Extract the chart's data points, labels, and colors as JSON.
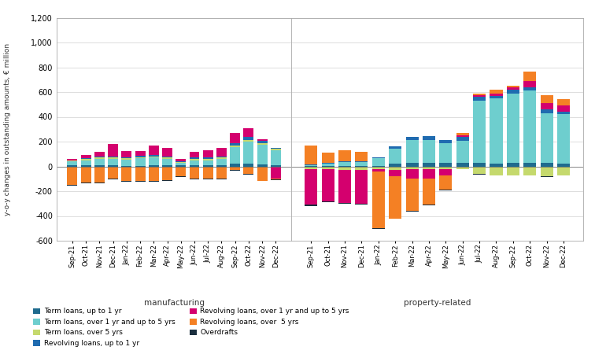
{
  "months": [
    "Sep-21",
    "Oct-21",
    "Nov-21",
    "Dec-21",
    "Jan-22",
    "Feb-22",
    "Mar-22",
    "Apr-22",
    "May-22",
    "Jun-22",
    "Jul-22",
    "Aug-22",
    "Sep-22",
    "Oct-22",
    "Nov-22",
    "Dec-22"
  ],
  "colors": {
    "term_up1": "#1f6b8e",
    "term_1to5": "#6ecece",
    "term_over5": "#c5d96d",
    "rev_up1": "#1f6bb0",
    "rev_1to5": "#d4006e",
    "rev_over5": "#f48024",
    "overdrafts": "#1a2e3e"
  },
  "manufacturing": {
    "term_up1": [
      10,
      10,
      10,
      10,
      5,
      5,
      10,
      10,
      10,
      10,
      10,
      10,
      25,
      25,
      15,
      10
    ],
    "term_1to5": [
      30,
      40,
      50,
      50,
      50,
      60,
      60,
      50,
      20,
      40,
      40,
      50,
      130,
      175,
      160,
      120
    ],
    "term_over5": [
      5,
      10,
      10,
      10,
      10,
      10,
      10,
      10,
      5,
      10,
      10,
      10,
      15,
      15,
      15,
      10
    ],
    "rev_up1": [
      5,
      5,
      10,
      10,
      10,
      10,
      10,
      10,
      5,
      10,
      10,
      10,
      20,
      25,
      15,
      10
    ],
    "rev_1to5": [
      10,
      30,
      40,
      100,
      50,
      40,
      80,
      70,
      20,
      50,
      60,
      70,
      80,
      70,
      15,
      -100
    ],
    "rev_over5": [
      -150,
      -130,
      -130,
      -100,
      -120,
      -120,
      -120,
      -110,
      -80,
      -100,
      -100,
      -100,
      -30,
      -60,
      -115,
      -5
    ],
    "overdrafts": [
      -5,
      -5,
      -5,
      -5,
      -5,
      -5,
      -5,
      -5,
      -5,
      -5,
      -5,
      -5,
      -5,
      -5,
      -5,
      -5
    ]
  },
  "property": {
    "term_up1": [
      5,
      5,
      5,
      5,
      5,
      20,
      30,
      30,
      30,
      30,
      30,
      20,
      30,
      30,
      30,
      20
    ],
    "term_1to5": [
      5,
      20,
      30,
      30,
      60,
      120,
      180,
      185,
      155,
      175,
      500,
      530,
      560,
      580,
      400,
      400
    ],
    "term_over5": [
      -20,
      -20,
      -30,
      -30,
      -20,
      -30,
      -20,
      -20,
      -20,
      -20,
      -60,
      -70,
      -70,
      -70,
      -80,
      -70
    ],
    "rev_up1": [
      5,
      5,
      5,
      5,
      5,
      20,
      30,
      30,
      30,
      30,
      30,
      20,
      30,
      30,
      30,
      20
    ],
    "rev_1to5": [
      -290,
      -265,
      -265,
      -270,
      -20,
      -50,
      -80,
      -80,
      -50,
      15,
      15,
      20,
      15,
      50,
      50,
      50
    ],
    "rev_over5": [
      155,
      80,
      90,
      80,
      -460,
      -340,
      -260,
      -210,
      -120,
      20,
      15,
      30,
      15,
      75,
      65,
      55
    ],
    "overdrafts": [
      -10,
      -5,
      -5,
      -5,
      -5,
      -5,
      -5,
      -5,
      -5,
      -5,
      -5,
      -5,
      -5,
      -5,
      -5,
      -5
    ]
  },
  "ylabel": "y-o-y changes in outstanding amounts, € million",
  "xlabel_left": "manufacturing",
  "xlabel_right": "property-related",
  "ylim": [
    -600,
    1200
  ],
  "yticks": [
    -600,
    -400,
    -200,
    0,
    200,
    400,
    600,
    800,
    1000,
    1200
  ],
  "legend_labels": [
    "Term loans, up to 1 yr",
    "Term loans, over 1 yr and up to 5 yrs",
    "Term loans, over 5 yrs",
    "Revolving loans, up to 1 yr",
    "Revolving loans, over 1 yr and up to 5 yrs",
    "Revolving loans, over  5 yrs",
    "Overdrafts"
  ],
  "background_color": "#ffffff",
  "grid_color": "#d0d0d0"
}
